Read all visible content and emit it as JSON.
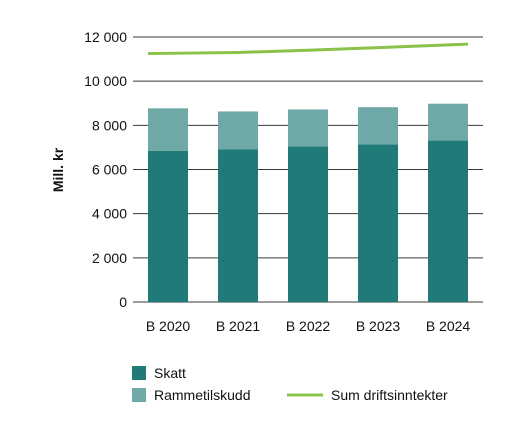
{
  "chart_data": {
    "type": "bar",
    "stacked": true,
    "categories": [
      "B 2020",
      "B 2021",
      "B 2022",
      "B 2023",
      "B 2024"
    ],
    "series": [
      {
        "name": "Skatt",
        "kind": "bar",
        "color": "#1f7a78",
        "values": [
          6850,
          6920,
          7040,
          7140,
          7310
        ]
      },
      {
        "name": "Rammetilskudd",
        "kind": "bar",
        "color": "#6fa9a7",
        "values": [
          1920,
          1710,
          1680,
          1680,
          1670
        ]
      },
      {
        "name": "Sum driftsinntekter",
        "kind": "line",
        "color": "#8bc34a",
        "values": [
          11250,
          11300,
          11400,
          11520,
          11680
        ]
      }
    ],
    "ylabel": "Mill. kr",
    "ylim": [
      0,
      12000
    ],
    "yticks": [
      0,
      2000,
      4000,
      6000,
      8000,
      10000,
      12000
    ],
    "ytick_labels": [
      "0",
      "2 000",
      "4 000",
      "6 000",
      "8 000",
      "10 000",
      "12 000"
    ],
    "grid": true,
    "legend_position": "bottom"
  }
}
